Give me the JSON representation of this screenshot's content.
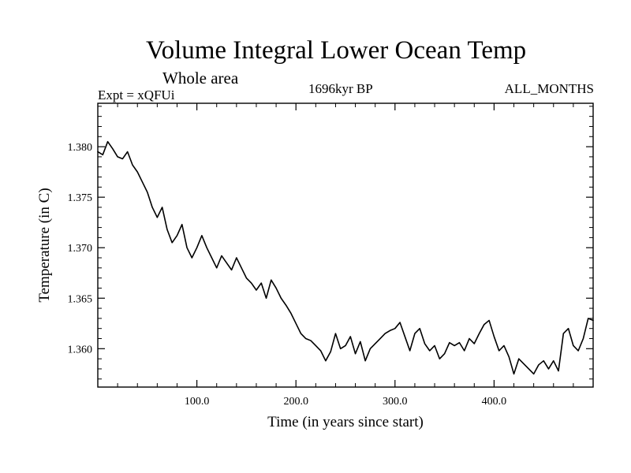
{
  "chart_data": {
    "type": "line",
    "title": "Volume Integral Lower Ocean Temp",
    "subtitle": "Whole area",
    "experiment_label": "Expt = xQFUi",
    "period_label": "1696kyr BP",
    "months_label": "ALL_MONTHS",
    "xlabel": "Time (in years since start)",
    "ylabel": "Temperature (in C)",
    "xlim": [
      0,
      500
    ],
    "ylim": [
      1.3562,
      1.3843
    ],
    "x_ticks": [
      100,
      200,
      300,
      400
    ],
    "x_tick_labels": [
      "100.0",
      "200.0",
      "300.0",
      "400.0"
    ],
    "y_ticks": [
      1.36,
      1.365,
      1.37,
      1.375,
      1.38
    ],
    "y_tick_labels": [
      "1.360",
      "1.365",
      "1.370",
      "1.375",
      "1.380"
    ],
    "grid": false,
    "series": [
      {
        "name": "Volume Integral Lower Ocean Temp",
        "x": [
          0,
          5,
          10,
          15,
          20,
          25,
          30,
          35,
          40,
          45,
          50,
          55,
          60,
          65,
          70,
          75,
          80,
          85,
          90,
          95,
          100,
          105,
          110,
          115,
          120,
          125,
          130,
          135,
          140,
          145,
          150,
          155,
          160,
          165,
          170,
          175,
          180,
          185,
          190,
          195,
          200,
          205,
          210,
          215,
          220,
          225,
          230,
          235,
          240,
          245,
          250,
          255,
          260,
          265,
          270,
          275,
          280,
          285,
          290,
          295,
          300,
          305,
          310,
          315,
          320,
          325,
          330,
          335,
          340,
          345,
          350,
          355,
          360,
          365,
          370,
          375,
          380,
          385,
          390,
          395,
          400,
          405,
          410,
          415,
          420,
          425,
          430,
          435,
          440,
          445,
          450,
          455,
          460,
          465,
          470,
          475,
          480,
          485,
          490,
          495,
          500
        ],
        "values": [
          1.3795,
          1.3792,
          1.3805,
          1.3798,
          1.379,
          1.3788,
          1.3795,
          1.3782,
          1.3775,
          1.3765,
          1.3755,
          1.374,
          1.373,
          1.374,
          1.3718,
          1.3705,
          1.3712,
          1.3723,
          1.37,
          1.369,
          1.37,
          1.3712,
          1.37,
          1.369,
          1.368,
          1.3692,
          1.3685,
          1.3678,
          1.369,
          1.368,
          1.367,
          1.3665,
          1.3658,
          1.3665,
          1.365,
          1.3668,
          1.366,
          1.365,
          1.3643,
          1.3635,
          1.3625,
          1.3615,
          1.361,
          1.3608,
          1.3603,
          1.3598,
          1.3588,
          1.3597,
          1.3615,
          1.36,
          1.3603,
          1.3612,
          1.3595,
          1.3607,
          1.3588,
          1.36,
          1.3605,
          1.361,
          1.3615,
          1.3618,
          1.362,
          1.3626,
          1.3612,
          1.3598,
          1.3615,
          1.362,
          1.3605,
          1.3598,
          1.3603,
          1.359,
          1.3595,
          1.3606,
          1.3603,
          1.3606,
          1.3598,
          1.361,
          1.3605,
          1.3615,
          1.3624,
          1.3628,
          1.3612,
          1.3598,
          1.3603,
          1.3592,
          1.3575,
          1.359,
          1.3585,
          1.358,
          1.3575,
          1.3584,
          1.3588,
          1.358,
          1.3588,
          1.3578,
          1.3615,
          1.362,
          1.3603,
          1.3598,
          1.361,
          1.363,
          1.3628
        ]
      }
    ]
  },
  "colors": {
    "background": "#ffffff",
    "axis": "#000000",
    "line": "#000000"
  }
}
